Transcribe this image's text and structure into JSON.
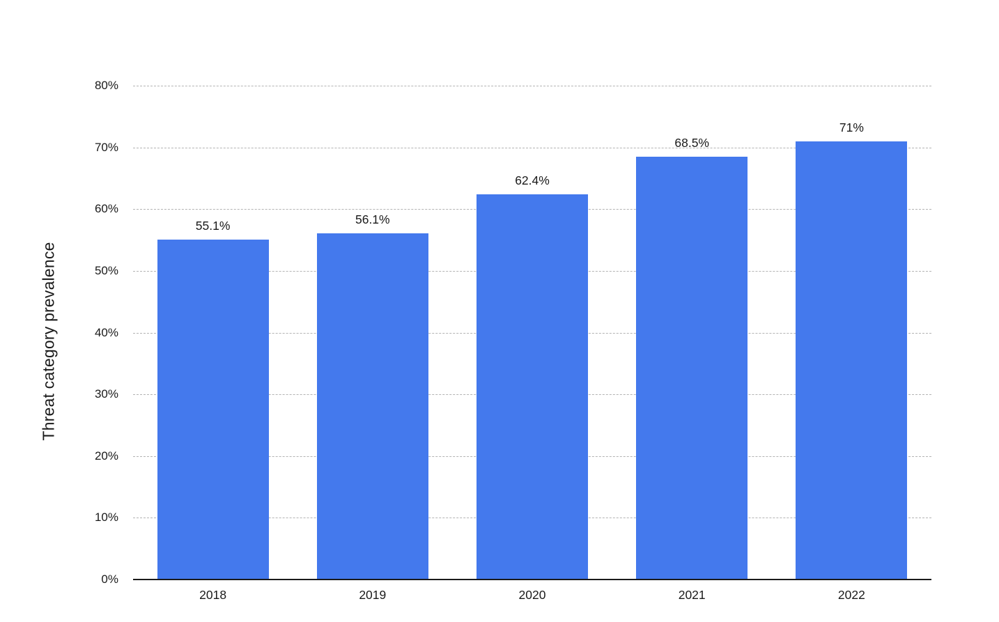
{
  "chart_data": {
    "type": "bar",
    "categories": [
      "2018",
      "2019",
      "2020",
      "2021",
      "2022"
    ],
    "values": [
      55.1,
      56.1,
      62.4,
      68.5,
      71
    ],
    "value_labels": [
      "55.1%",
      "56.1%",
      "62.4%",
      "68.5%",
      "71%"
    ],
    "xlabel": "",
    "ylabel": "Threat category prevalence",
    "ylim": [
      0,
      80
    ],
    "yticks": [
      0,
      10,
      20,
      30,
      40,
      50,
      60,
      70,
      80
    ],
    "ytick_labels": [
      "0%",
      "10%",
      "20%",
      "30%",
      "40%",
      "50%",
      "60%",
      "70%",
      "80%"
    ],
    "grid": "horizontal-dashed",
    "legend": "none",
    "colors": {
      "bar": "#4479ED",
      "text": "#1a1a1a",
      "gridline": "#b3b3b3",
      "axis": "#1a1a1a",
      "background": "#ffffff"
    }
  }
}
